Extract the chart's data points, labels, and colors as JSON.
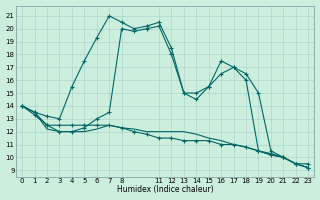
{
  "xlabel": "Humidex (Indice chaleur)",
  "bg_color": "#cceedd",
  "grid_color": "#aacccc",
  "line_color": "#006666",
  "xlim": [
    -0.5,
    23.5
  ],
  "ylim": [
    8.5,
    21.8
  ],
  "yticks": [
    9,
    10,
    11,
    12,
    13,
    14,
    15,
    16,
    17,
    18,
    19,
    20,
    21
  ],
  "xtick_positions": [
    0,
    1,
    2,
    3,
    4,
    5,
    6,
    7,
    8,
    11,
    12,
    13,
    14,
    15,
    16,
    17,
    18,
    19,
    20,
    21,
    22,
    23
  ],
  "xtick_labels": [
    "0",
    "1",
    "2",
    "3",
    "4",
    "5",
    "6",
    "7",
    "8",
    "11",
    "12",
    "13",
    "14",
    "15",
    "16",
    "17",
    "18",
    "19",
    "20",
    "21",
    "22",
    "23"
  ],
  "line1_x": [
    0,
    1,
    2,
    3,
    4,
    5,
    6,
    7,
    8,
    9,
    10,
    11,
    12,
    13,
    14,
    15,
    16,
    17,
    18,
    19,
    20,
    21,
    22,
    23
  ],
  "line1_y": [
    14.0,
    13.5,
    13.2,
    13.0,
    15.5,
    17.5,
    19.3,
    21.0,
    20.5,
    20.0,
    20.2,
    20.5,
    18.5,
    15.0,
    15.0,
    15.5,
    17.5,
    17.0,
    16.5,
    15.0,
    10.5,
    10.0,
    9.5,
    9.2
  ],
  "line1_markers": true,
  "line2_x": [
    0,
    1,
    2,
    3,
    4,
    5,
    6,
    7,
    8,
    9,
    10,
    11,
    12,
    13,
    14,
    15,
    16,
    17,
    18,
    19,
    20,
    21,
    22,
    23
  ],
  "line2_y": [
    14.0,
    13.5,
    12.2,
    12.0,
    12.0,
    12.0,
    12.2,
    12.5,
    12.3,
    12.2,
    12.0,
    12.0,
    12.0,
    12.0,
    11.8,
    11.5,
    11.3,
    11.0,
    10.8,
    10.5,
    10.2,
    10.0,
    9.5,
    9.2
  ],
  "line2_markers": false,
  "line3_x": [
    0,
    1,
    2,
    3,
    4,
    5,
    6,
    7,
    8,
    9,
    10,
    11,
    12,
    13,
    14,
    15,
    16,
    17,
    18,
    19,
    20,
    21,
    22,
    23
  ],
  "line3_y": [
    14.0,
    13.3,
    12.5,
    12.5,
    12.5,
    12.5,
    12.5,
    12.5,
    12.3,
    12.0,
    11.8,
    11.5,
    11.5,
    11.3,
    11.3,
    11.3,
    11.0,
    11.0,
    10.8,
    10.5,
    10.2,
    10.0,
    9.5,
    9.2
  ],
  "line3_markers": true,
  "line4_x": [
    0,
    1,
    2,
    3,
    4,
    5,
    6,
    7,
    8,
    9,
    10,
    11,
    12,
    13,
    14,
    15,
    16,
    17,
    18,
    19,
    20,
    21,
    22,
    23
  ],
  "line4_y": [
    14.0,
    13.5,
    12.5,
    12.0,
    12.0,
    12.3,
    13.0,
    13.5,
    20.0,
    19.8,
    20.0,
    20.2,
    18.0,
    15.0,
    14.5,
    15.5,
    16.5,
    17.0,
    16.0,
    10.5,
    10.3,
    10.0,
    9.5,
    9.5
  ],
  "line4_markers": true
}
